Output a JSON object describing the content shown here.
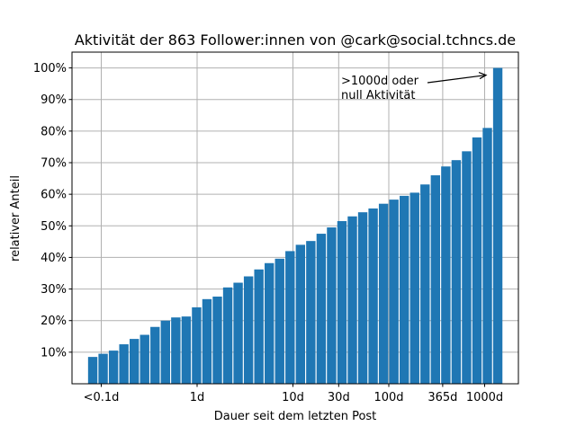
{
  "chart_data": {
    "type": "bar",
    "title": "Aktivität der 863 Follower:innen von @cark@social.tchncs.de",
    "xlabel": "Dauer seit dem letzten Post",
    "ylabel": "relativer Anteil",
    "xscale": "log",
    "bar_x_range_days": [
      0.0815,
      1370
    ],
    "values": [
      8.5,
      9.5,
      10.5,
      12.5,
      14.2,
      15.5,
      18,
      20,
      21,
      21.3,
      24.2,
      26.8,
      27.6,
      30.5,
      32,
      34,
      36.2,
      38.2,
      39.6,
      42,
      44,
      45.2,
      47.5,
      49.5,
      51.5,
      53,
      54.3,
      55.5,
      57,
      58.3,
      59.5,
      60.5,
      63.1,
      66,
      68.8,
      70.8,
      73.6,
      78,
      81,
      100
    ],
    "ylim": [
      0,
      105
    ],
    "yticks": [
      {
        "value": 10,
        "label": "10%"
      },
      {
        "value": 20,
        "label": "20%"
      },
      {
        "value": 30,
        "label": "30%"
      },
      {
        "value": 40,
        "label": "40%"
      },
      {
        "value": 50,
        "label": "50%"
      },
      {
        "value": 60,
        "label": "60%"
      },
      {
        "value": 70,
        "label": "70%"
      },
      {
        "value": 80,
        "label": "80%"
      },
      {
        "value": 90,
        "label": "90%"
      },
      {
        "value": 100,
        "label": "100%"
      }
    ],
    "xticks": [
      {
        "value": 0.1,
        "label": "<0.1d"
      },
      {
        "value": 1,
        "label": "1d"
      },
      {
        "value": 10,
        "label": "10d"
      },
      {
        "value": 30,
        "label": "30d"
      },
      {
        "value": 100,
        "label": "100d"
      },
      {
        "value": 365,
        "label": "365d"
      },
      {
        "value": 1000,
        "label": "1000d"
      }
    ],
    "annotation": {
      "line1": ">1000d oder",
      "line2": "null Aktivität",
      "target_bar": "last"
    },
    "grid": true,
    "bar_color": "#1f77b4"
  }
}
